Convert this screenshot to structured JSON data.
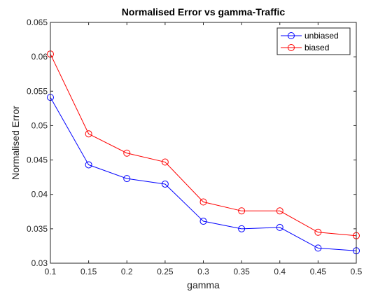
{
  "chart_data": {
    "type": "line",
    "title": "Normalised Error vs gamma-Traffic",
    "xlabel": "gamma",
    "ylabel": "Normalised Error",
    "x": [
      0.1,
      0.15,
      0.2,
      0.25,
      0.3,
      0.35,
      0.4,
      0.45,
      0.5
    ],
    "xlim": [
      0.1,
      0.5
    ],
    "ylim": [
      0.03,
      0.065
    ],
    "xticks": [
      "0.1",
      "0.15",
      "0.2",
      "0.25",
      "0.3",
      "0.35",
      "0.4",
      "0.45",
      "0.5"
    ],
    "yticks": [
      "0.03",
      "0.035",
      "0.04",
      "0.045",
      "0.05",
      "0.055",
      "0.06",
      "0.065"
    ],
    "grid": false,
    "legend_position": "top-right",
    "marker": "circle",
    "series": [
      {
        "name": "unbiased",
        "color": "#0000ff",
        "values": [
          0.0541,
          0.0443,
          0.0423,
          0.0415,
          0.0361,
          0.035,
          0.0352,
          0.0322,
          0.0318
        ]
      },
      {
        "name": "biased",
        "color": "#ff0000",
        "values": [
          0.0604,
          0.0488,
          0.046,
          0.0447,
          0.0389,
          0.0376,
          0.0376,
          0.0345,
          0.034
        ]
      }
    ]
  }
}
